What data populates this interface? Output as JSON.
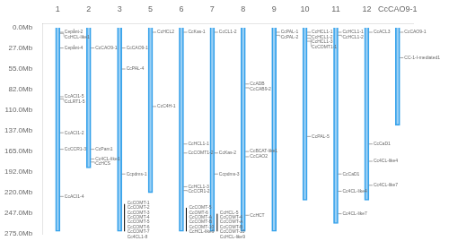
{
  "chart_data": {
    "type": "bar",
    "categories": [
      "1",
      "2",
      "3",
      "5",
      "6",
      "7",
      "8",
      "9",
      "10",
      "11",
      "12",
      "CcCAO9-1"
    ],
    "values": [
      271.5,
      187.0,
      271.5,
      220.0,
      271.5,
      271.5,
      271.5,
      271.5,
      230.0,
      261.0,
      230.0,
      130.0
    ],
    "genes": [
      [
        {
          "label": "Cepånt-2",
          "value": 6.0
        },
        {
          "label": "CcHCL-like1",
          "value": 7.5
        },
        {
          "label": "Cepånt-4",
          "value": 27.0
        },
        {
          "label": "CcACI1-5",
          "value": 92.0
        },
        {
          "label": "CcLRT1-5",
          "value": 95.0
        },
        {
          "label": "CcACI1-2",
          "value": 140.0
        },
        {
          "label": "CcCCR1-3",
          "value": 162.0
        },
        {
          "label": "CcACI1-4",
          "value": 225.0
        }
      ],
      [
        {
          "label": "CcCAO9-1",
          "value": 27.0
        },
        {
          "label": "CcPam1",
          "value": 162.0
        },
        {
          "label": "Cc4CL-like1",
          "value": 175.0
        },
        {
          "label": "CcHCS",
          "value": 179.0
        }
      ],
      [
        {
          "label": "CcCAO9-1",
          "value": 27.0
        },
        {
          "label": "CcPAL-4",
          "value": 55.0
        },
        {
          "label": "Ccpdms-1",
          "value": 195.0
        }
      ],
      [
        {
          "label": "CcHCL2",
          "value": 6.0
        },
        {
          "label": "CcC4H-1",
          "value": 105.0
        }
      ],
      [
        {
          "label": "CcKas-1",
          "value": 6.0
        },
        {
          "label": "CcHCL1-1",
          "value": 155.0
        },
        {
          "label": "CcCOMT1-2",
          "value": 167.0
        },
        {
          "label": "CcHCL1-3",
          "value": 212.0
        },
        {
          "label": "CcCCR1-2",
          "value": 217.0
        }
      ],
      [
        {
          "label": "CcCL1-2",
          "value": 6.0
        },
        {
          "label": "CcKas-2",
          "value": 167.0
        },
        {
          "label": "Ccpdms-3",
          "value": 195.0
        }
      ],
      [
        {
          "label": "CcADB",
          "value": 75.0
        },
        {
          "label": "CcCAB9-2",
          "value": 80.0
        },
        {
          "label": "CcBCAT-like1",
          "value": 165.0
        },
        {
          "label": "CcCAO2",
          "value": 172.0
        },
        {
          "label": "CcHCT",
          "value": 250.0
        }
      ],
      [
        {
          "label": "CcPAL-1",
          "value": 6.0
        },
        {
          "label": "CcPAL-2",
          "value": 10.0
        }
      ],
      [
        {
          "label": "CcHCL1-1",
          "value": 6.0
        },
        {
          "label": "CcHCL1-2",
          "value": 10.0
        },
        {
          "label": "CcHCL1-3",
          "value": 14.0
        },
        {
          "label": "CcCOMT1-1",
          "value": 18.0
        },
        {
          "label": "CcPAL-5",
          "value": 145.0
        }
      ],
      [
        {
          "label": "CcHCL1-1",
          "value": 6.0
        },
        {
          "label": "CcHCL1-2",
          "value": 10.0
        },
        {
          "label": "CcCaD1",
          "value": 195.0
        },
        {
          "label": "Cc4CL-like4",
          "value": 218.0
        },
        {
          "label": "Cc4CL-like7",
          "value": 248.0
        }
      ],
      [
        {
          "label": "CcACL3",
          "value": 6.0
        },
        {
          "label": "CcCaD1",
          "value": 155.0
        },
        {
          "label": "Cc4CL-like4",
          "value": 178.0
        },
        {
          "label": "Cc4CL-like7",
          "value": 210.0
        }
      ],
      [
        {
          "label": "CcCAO9-1",
          "value": 6.0
        },
        {
          "label": "CC-1-I-mediated1",
          "value": 40.0
        }
      ]
    ],
    "clusters": [
      {
        "category": "3",
        "start": 235.0,
        "end": 271.5,
        "labels": [
          "CcCOMT-1",
          "CcCOMT-2",
          "CcCOMT-3",
          "CcCOMT-4",
          "CcCOMT-5",
          "CcCOMT-6",
          "CcCOMT-7",
          "Cc4CL1-8"
        ]
      },
      {
        "category": "6",
        "start": 240.0,
        "end": 271.5,
        "labels": [
          "CcCOMT-5",
          "CcOMT-6",
          "CcCOMT-A",
          "CcCOMT-B",
          "CcCOMT-10",
          "CcHCL-like9"
        ]
      },
      {
        "category": "7",
        "start": 248.0,
        "end": 271.5,
        "labels": [
          "CcHCL-5",
          "CcCOMT-4",
          "CcCOMT-A",
          "CcCOMT-B",
          "CcCOMT-10",
          "CcHCL-like9"
        ]
      }
    ],
    "ylim": [
      275.0,
      -5
    ],
    "yticks": [
      {
        "value": 0,
        "label": "0.0Mb"
      },
      {
        "value": 27,
        "label": "27.0Mb"
      },
      {
        "value": 55,
        "label": "55.0Mb"
      },
      {
        "value": 82,
        "label": "82.0Mb"
      },
      {
        "value": 110,
        "label": "110.0Mb"
      },
      {
        "value": 137,
        "label": "137.0Mb"
      },
      {
        "value": 165,
        "label": "165.0Mb"
      },
      {
        "value": 192,
        "label": "192.0Mb"
      },
      {
        "value": 220,
        "label": "220.0Mb"
      },
      {
        "value": 247,
        "label": "247.0Mb"
      },
      {
        "value": 275,
        "label": "275.0Mb"
      }
    ],
    "grid": false
  }
}
